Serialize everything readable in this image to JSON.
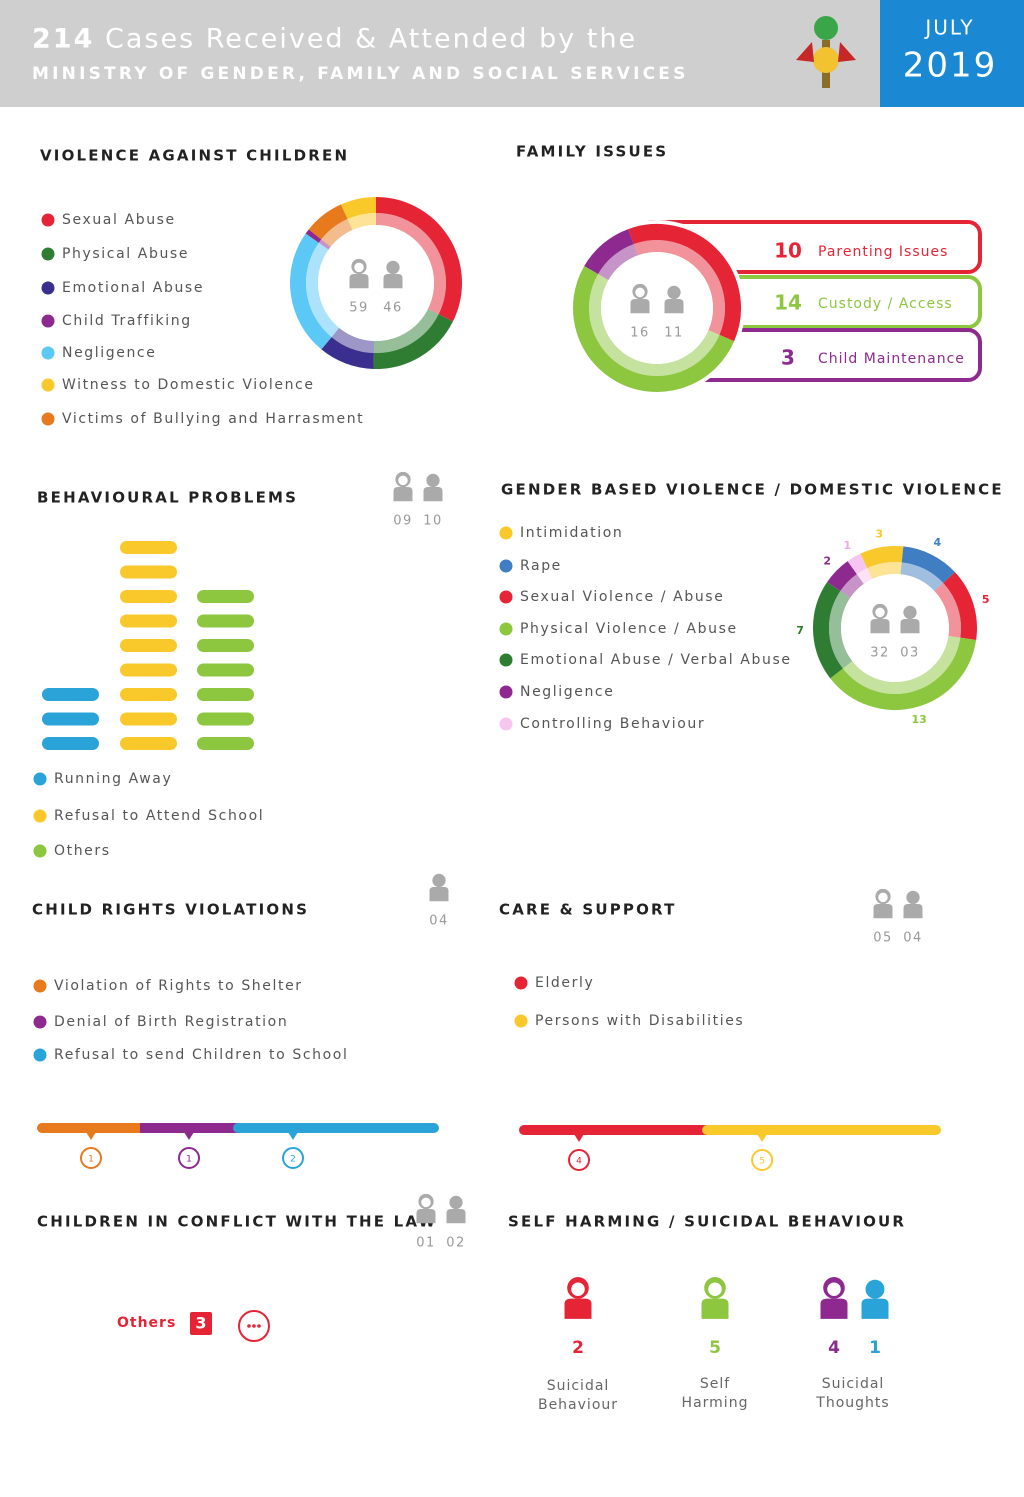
{
  "header": {
    "count": 214,
    "title": "Cases Received & Attended by the",
    "subtitle": "MINISTRY OF GENDER, FAMILY AND SOCIAL SERVICES",
    "month": "JULY",
    "year": "2019"
  },
  "violence_against_children": {
    "title": "VIOLENCE AGAINST CHILDREN",
    "girls": 59,
    "boys": 46,
    "items": [
      {
        "label": "Sexual Abuse",
        "color": "#e52535",
        "value": 34
      },
      {
        "label": "Physical Abuse",
        "color": "#2e7d32",
        "value": 19
      },
      {
        "label": "Emotional Abuse",
        "color": "#3a2f8f",
        "value": 11
      },
      {
        "label": "Negligence",
        "color": "#5bc8f5",
        "value": 25
      },
      {
        "label": "Child Traffiking",
        "color": "#8e2a8f",
        "value": 1
      },
      {
        "label": "Victims of Bullying and Harrasment",
        "color": "#e87a1e",
        "value": 8
      },
      {
        "label": "Witness to Domestic Violence",
        "color": "#f9c82b",
        "value": 7
      }
    ]
  },
  "family_issues": {
    "title": "FAMILY ISSUES",
    "girls": 16,
    "boys": 11,
    "items": [
      {
        "label": "Parenting Issues",
        "color": "#e52535",
        "value": 10
      },
      {
        "label": "Custody / Access",
        "color": "#8dc63f",
        "value": 14
      },
      {
        "label": "Child Maintenance",
        "color": "#8e2a8f",
        "value": 3
      }
    ]
  },
  "behavioural_problems": {
    "title": "BEHAVIOURAL PROBLEMS",
    "girls": "09",
    "boys": 10,
    "items": [
      {
        "label": "Running Away",
        "color": "#2aa3d9",
        "value": 3
      },
      {
        "label": "Refusal to Attend School",
        "color": "#f9c82b",
        "value": 9
      },
      {
        "label": "Others",
        "color": "#8dc63f",
        "value": 7
      }
    ]
  },
  "gender_based_violence": {
    "title": "GENDER BASED VIOLENCE / DOMESTIC VIOLENCE",
    "girls": 32,
    "boys": "03",
    "items": [
      {
        "label": "Intimidation",
        "color": "#f9c82b",
        "value": 3
      },
      {
        "label": "Rape",
        "color": "#3f7ec2",
        "value": 4
      },
      {
        "label": "Sexual Violence / Abuse",
        "color": "#e52535",
        "value": 5
      },
      {
        "label": "Physical Violence / Abuse",
        "color": "#8dc63f",
        "value": 13
      },
      {
        "label": "Emotional Abuse / Verbal Abuse",
        "color": "#2e7d32",
        "value": 7
      },
      {
        "label": "Negligence",
        "color": "#8e2a8f",
        "value": 2
      },
      {
        "label": "Controlling Behaviour",
        "color": "#f7c6f0",
        "value": 1
      }
    ]
  },
  "child_rights_violations": {
    "title": "CHILD RIGHTS VIOLATIONS",
    "boys": "04",
    "items": [
      {
        "label": "Violation of Rights to Shelter",
        "color": "#e87a1e",
        "value": 1
      },
      {
        "label": "Denial of Birth Registration",
        "color": "#8e2a8f",
        "value": 1
      },
      {
        "label": "Refusal to send Children to School",
        "color": "#2aa3d9",
        "value": 2
      }
    ]
  },
  "care_and_support": {
    "title": "CARE & SUPPORT",
    "girls": "05",
    "boys": "04",
    "items": [
      {
        "label": "Elderly",
        "color": "#e52535",
        "value": 4
      },
      {
        "label": "Persons with Disabilities",
        "color": "#f9c82b",
        "value": 5
      }
    ]
  },
  "children_in_conflict_with_law": {
    "title": "CHILDREN IN CONFLICT WITH THE LAW",
    "girls": "01",
    "boys": "02",
    "item": {
      "label": "Others",
      "value": 3
    }
  },
  "self_harming": {
    "title": "SELF HARMING / SUICIDAL BEHAVIOUR",
    "items": [
      {
        "label": "Suicidal Behaviour",
        "color": "#e52535",
        "values": [
          2
        ]
      },
      {
        "label": "Self Harming",
        "color": "#8dc63f",
        "values": [
          5
        ]
      },
      {
        "label": "Suicidal Thoughts",
        "color": "#8e2a8f",
        "values": [
          4,
          1
        ]
      }
    ]
  }
}
